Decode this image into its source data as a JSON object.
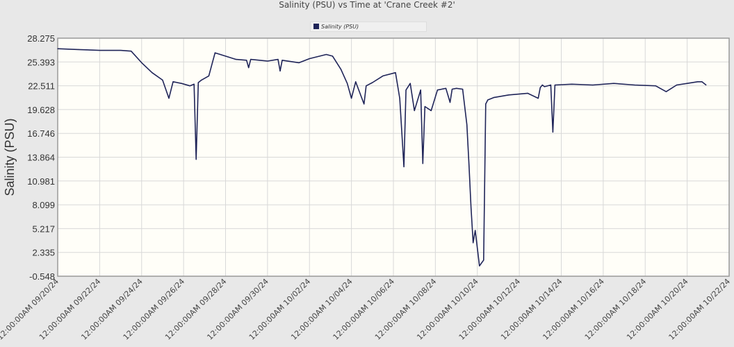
{
  "chart_data": {
    "type": "line",
    "title": "Salinity (PSU) vs Time at 'Crane Creek #2'",
    "ylabel": "Salinity (PSU)",
    "xlabel": "",
    "ylim": [
      -0.548,
      28.275
    ],
    "yticks": [
      "28.275",
      "25.393",
      "22.511",
      "19.628",
      "16.746",
      "13.864",
      "10.981",
      "8.099",
      "5.217",
      "2.335",
      "-0.548"
    ],
    "xlim_days": [
      0,
      32
    ],
    "x_unit": "days since 12:00:00AM 09/20/24",
    "xticks": [
      "12:00:00AM 09/20/24",
      "12:00:00AM 09/22/24",
      "12:00:00AM 09/24/24",
      "12:00:00AM 09/26/24",
      "12:00:00AM 09/28/24",
      "12:00:00AM 09/30/24",
      "12:00:00AM 10/02/24",
      "12:00:00AM 10/04/24",
      "12:00:00AM 10/06/24",
      "12:00:00AM 10/08/24",
      "12:00:00AM 10/10/24",
      "12:00:00AM 10/12/24",
      "12:00:00AM 10/14/24",
      "12:00:00AM 10/16/24",
      "12:00:00AM 10/18/24",
      "12:00:00AM 10/20/24",
      "12:00:00AM 10/22/24"
    ],
    "grid": true,
    "legend": {
      "position": "top-center",
      "entries": [
        "Salinity (PSU)"
      ]
    },
    "series": [
      {
        "name": "Salinity (PSU)",
        "color": "#1f2458",
        "x": [
          0,
          1,
          2,
          3,
          3.5,
          4.0,
          4.5,
          5.0,
          5.3,
          5.5,
          5.9,
          6.3,
          6.5,
          6.6,
          6.7,
          6.85,
          7.2,
          7.5,
          8.0,
          8.5,
          9.0,
          9.1,
          9.2,
          10.0,
          10.5,
          10.6,
          10.7,
          11.5,
          12.0,
          12.8,
          13.1,
          13.5,
          13.8,
          14.0,
          14.2,
          14.6,
          14.7,
          15.0,
          15.5,
          16.1,
          16.3,
          16.5,
          16.6,
          16.8,
          17.0,
          17.3,
          17.4,
          17.5,
          17.8,
          18.1,
          18.5,
          18.7,
          18.8,
          19.0,
          19.3,
          19.5,
          19.6,
          19.7,
          19.8,
          19.9,
          20.1,
          20.3,
          20.4,
          20.5,
          20.8,
          21.5,
          22.4,
          22.9,
          23.0,
          23.1,
          23.2,
          23.5,
          23.6,
          23.7,
          24.5,
          25.5,
          26.5,
          27.5,
          28.5,
          29.0,
          29.5,
          30.0,
          30.5,
          30.7,
          30.9
        ],
        "y": [
          27.0,
          26.9,
          26.8,
          26.8,
          26.7,
          25.3,
          24.1,
          23.2,
          21.0,
          23.0,
          22.8,
          22.5,
          22.7,
          13.6,
          22.9,
          23.2,
          23.7,
          26.5,
          26.1,
          25.7,
          25.6,
          24.7,
          25.7,
          25.5,
          25.7,
          24.3,
          25.6,
          25.3,
          25.8,
          26.3,
          26.1,
          24.5,
          22.8,
          21.0,
          23.0,
          20.3,
          22.5,
          22.9,
          23.7,
          24.1,
          21.0,
          12.7,
          22.0,
          22.8,
          19.5,
          22.0,
          13.1,
          20.0,
          19.5,
          22.0,
          22.2,
          20.5,
          22.1,
          22.2,
          22.1,
          17.8,
          13.0,
          7.7,
          3.5,
          5.0,
          0.7,
          1.4,
          20.3,
          20.8,
          21.1,
          21.4,
          21.6,
          21.0,
          22.3,
          22.6,
          22.4,
          22.6,
          16.9,
          22.6,
          22.7,
          22.6,
          22.8,
          22.6,
          22.5,
          21.8,
          22.6,
          22.8,
          23.0,
          23.0,
          22.6
        ]
      }
    ]
  }
}
